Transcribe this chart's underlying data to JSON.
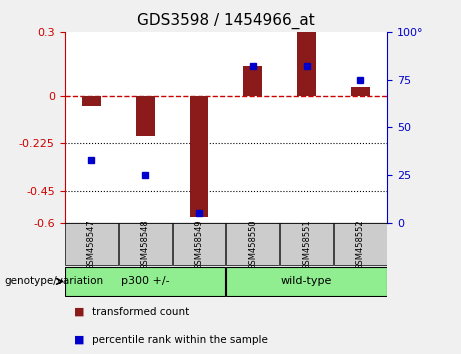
{
  "title": "GDS3598 / 1454966_at",
  "samples": [
    "GSM458547",
    "GSM458548",
    "GSM458549",
    "GSM458550",
    "GSM458551",
    "GSM458552"
  ],
  "red_values": [
    -0.05,
    -0.19,
    -0.57,
    0.14,
    0.3,
    0.04
  ],
  "blue_values": [
    33,
    25,
    5,
    82,
    82,
    75
  ],
  "left_ylim": [
    -0.6,
    0.3
  ],
  "right_ylim": [
    0,
    100
  ],
  "left_yticks": [
    -0.6,
    -0.45,
    -0.225,
    0,
    0.3
  ],
  "right_yticks": [
    0,
    25,
    50,
    75,
    100
  ],
  "dotted_lines": [
    -0.225,
    -0.45
  ],
  "group1_label": "p300 +/-",
  "group2_label": "wild-type",
  "group1_indices": [
    0,
    1,
    2
  ],
  "group2_indices": [
    3,
    4,
    5
  ],
  "group_color": "#90EE90",
  "bar_color": "#8B1A1A",
  "blue_color": "#0000CD",
  "dashed_line_color": "#CC0000",
  "xlabel_label": "genotype/variation",
  "legend_red": "transformed count",
  "legend_blue": "percentile rank within the sample",
  "bar_width": 0.35,
  "plot_bg_color": "#FFFFFF",
  "sample_box_color": "#CCCCCC",
  "title_fontsize": 11,
  "tick_fontsize": 8,
  "label_fontsize": 8
}
